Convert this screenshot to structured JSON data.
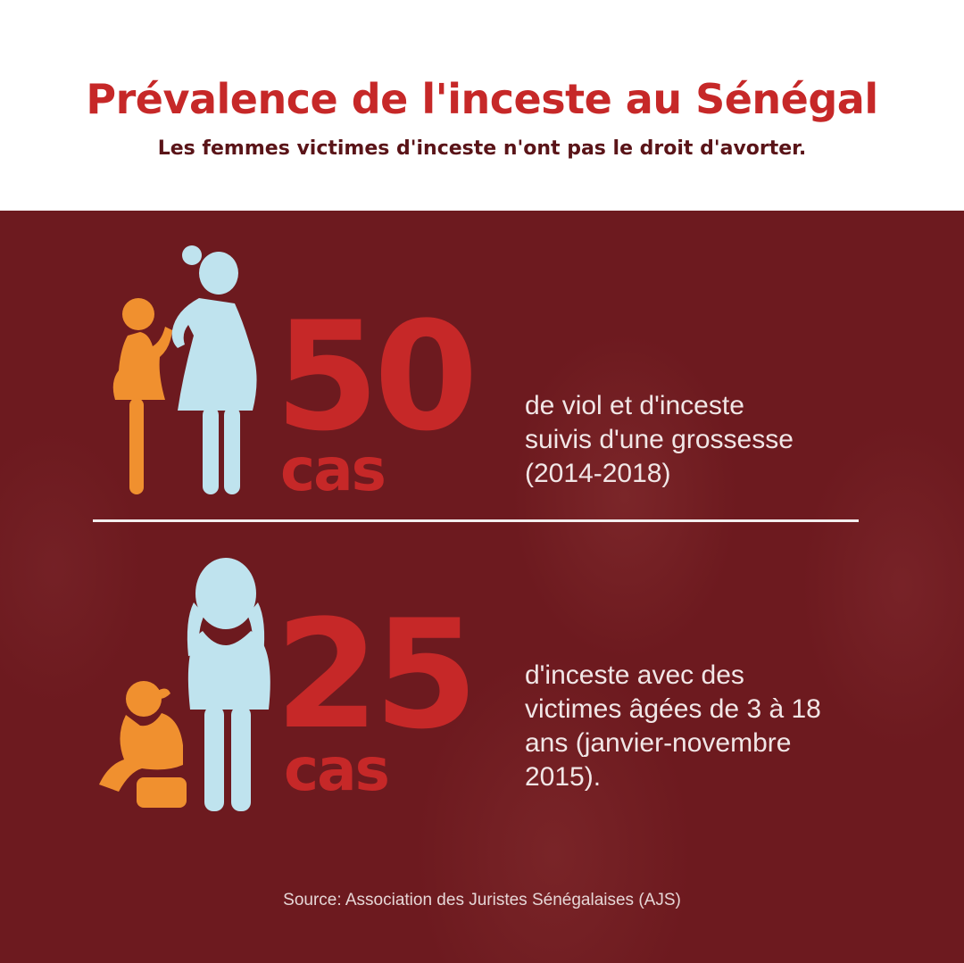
{
  "header": {
    "title": "Prévalence de l'inceste au Sénégal",
    "subtitle": "Les femmes victimes d'inceste n'ont pas le droit d'avorter."
  },
  "stats": [
    {
      "number": "50",
      "unit": "cas",
      "description": [
        "de viol et d'inceste",
        "suivis d'une grossesse",
        "(2014-2018)"
      ],
      "icon": "pregnant-women-icon"
    },
    {
      "number": "25",
      "unit": "cas",
      "description": [
        "d'inceste avec des",
        "victimes âgées de 3 à 18",
        "ans (janvier-novembre",
        "2015)."
      ],
      "icon": "distressed-women-icon"
    }
  ],
  "source": "Source: Association des Juristes Sénégalaises (AJS)",
  "colors": {
    "accent_red": "#c62828",
    "figure_orange": "#f0902f",
    "figure_blue": "#bfe3ee",
    "panel_background": "#6d1a1f"
  }
}
